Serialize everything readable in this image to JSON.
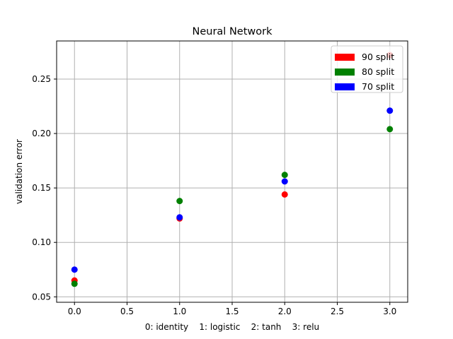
{
  "chart_data": {
    "type": "scatter",
    "title": "Neural Network",
    "xlabel": "0: identity    1: logistic    2: tanh    3: relu",
    "ylabel": "validation error",
    "xlim": [
      -0.17,
      3.17
    ],
    "ylim": [
      0.045,
      0.285
    ],
    "x_ticks": [
      "0.0",
      "0.5",
      "1.0",
      "1.5",
      "2.0",
      "2.5",
      "3.0"
    ],
    "y_ticks": [
      "0.05",
      "0.10",
      "0.15",
      "0.20",
      "0.25"
    ],
    "grid": true,
    "legend_position": "top-right",
    "series": [
      {
        "name": "90 split",
        "color": "#ff0000",
        "x": [
          0,
          1,
          2,
          3
        ],
        "y": [
          0.065,
          0.122,
          0.144,
          0.272
        ]
      },
      {
        "name": "80 split",
        "color": "#008000",
        "x": [
          0,
          1,
          2,
          3
        ],
        "y": [
          0.062,
          0.138,
          0.162,
          0.204
        ]
      },
      {
        "name": "70 split",
        "color": "#0000ff",
        "x": [
          0,
          1,
          2,
          3
        ],
        "y": [
          0.075,
          0.123,
          0.156,
          0.221
        ]
      }
    ]
  }
}
